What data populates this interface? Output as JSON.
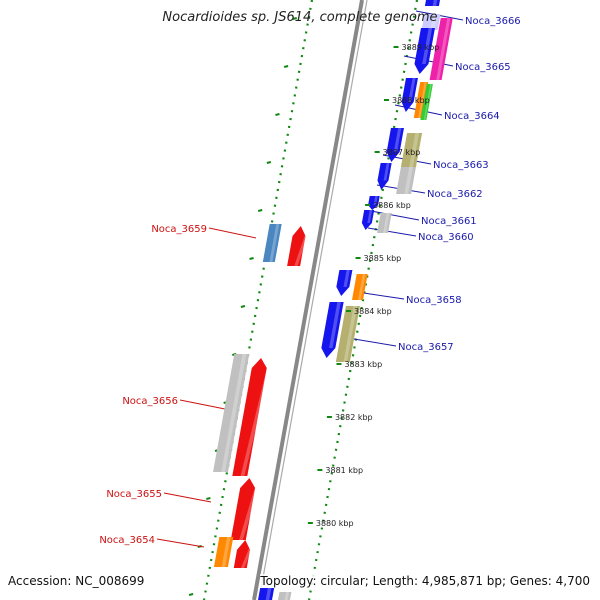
{
  "title": "Nocardioides sp. JS614, complete genome",
  "accession": "Accession: NC_008699",
  "topology": "Topology: circular; Length: 4,985,871 bp; Genes: 4,700",
  "colors": {
    "blue": "#1515ee",
    "red": "#ee1111",
    "grey": "#c0c0c0",
    "magenta": "#ee22aa",
    "orange": "#ff8800",
    "green": "#33cc33",
    "olive": "#b5b070",
    "steelblue": "#4a86c0",
    "label_forward": "#1a1aaa",
    "label_reverse": "#cc1111",
    "tick": "#118811",
    "backbone": "#888888"
  },
  "kbp_labels": [
    "3889 kbp",
    "3888 kbp",
    "3887 kbp",
    "3886 kbp",
    "3885 kbp",
    "3884 kbp",
    "3883 kbp",
    "3882 kbp",
    "3881 kbp",
    "3880 kbp"
  ],
  "gene_labels": [
    {
      "name": "Noca_3666",
      "strand": "forward"
    },
    {
      "name": "Noca_3665",
      "strand": "forward"
    },
    {
      "name": "Noca_3664",
      "strand": "forward"
    },
    {
      "name": "Noca_3663",
      "strand": "forward"
    },
    {
      "name": "Noca_3662",
      "strand": "forward"
    },
    {
      "name": "Noca_3661",
      "strand": "forward"
    },
    {
      "name": "Noca_3660",
      "strand": "forward"
    },
    {
      "name": "Noca_3659",
      "strand": "reverse"
    },
    {
      "name": "Noca_3658",
      "strand": "forward"
    },
    {
      "name": "Noca_3657",
      "strand": "forward"
    },
    {
      "name": "Noca_3656",
      "strand": "reverse"
    },
    {
      "name": "Noca_3655",
      "strand": "reverse"
    },
    {
      "name": "Noca_3654",
      "strand": "reverse"
    }
  ]
}
